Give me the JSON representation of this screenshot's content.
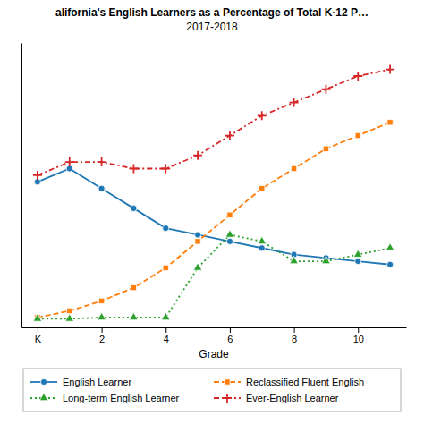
{
  "chart_data": {
    "type": "line",
    "title": "alifornia's English Learners as a Percentage of Total K-12 P…",
    "subtitle": "2017-2018",
    "x_label": "Grade",
    "x": [
      0,
      1,
      2,
      3,
      4,
      5,
      6,
      7,
      8,
      9,
      10,
      11
    ],
    "series": [
      {
        "name": "English Learner",
        "line_style": "solid",
        "marker": "circle",
        "values": [
          21,
          23,
          20,
          17,
          14,
          13,
          12,
          11,
          10,
          9.5,
          9,
          8.5
        ]
      },
      {
        "name": "Reclassified Fluent English",
        "line_style": "dashed",
        "marker": "square",
        "values": [
          0.5,
          1.5,
          3,
          5,
          8,
          12,
          16,
          20,
          23,
          26,
          28,
          30
        ]
      },
      {
        "name": "Long-term English Learner",
        "line_style": "dotted",
        "marker": "triangle",
        "values": [
          0.3,
          0.3,
          0.5,
          0.5,
          0.5,
          8,
          13,
          12,
          9,
          9,
          10,
          11
        ]
      },
      {
        "name": "Ever-English Learner",
        "line_style": "dashdot",
        "marker": "plus",
        "values": [
          22,
          24,
          24,
          23,
          23,
          25,
          28,
          31,
          33,
          35,
          37,
          38
        ]
      }
    ],
    "xlim": [
      -0.5,
      11.5
    ],
    "xticks": [
      {
        "value": 0,
        "label": "K"
      },
      2,
      4,
      6,
      8,
      10
    ],
    "ylim": [
      -1,
      42
    ],
    "tick_labels": "x",
    "grid": false,
    "legend": "bottom"
  }
}
